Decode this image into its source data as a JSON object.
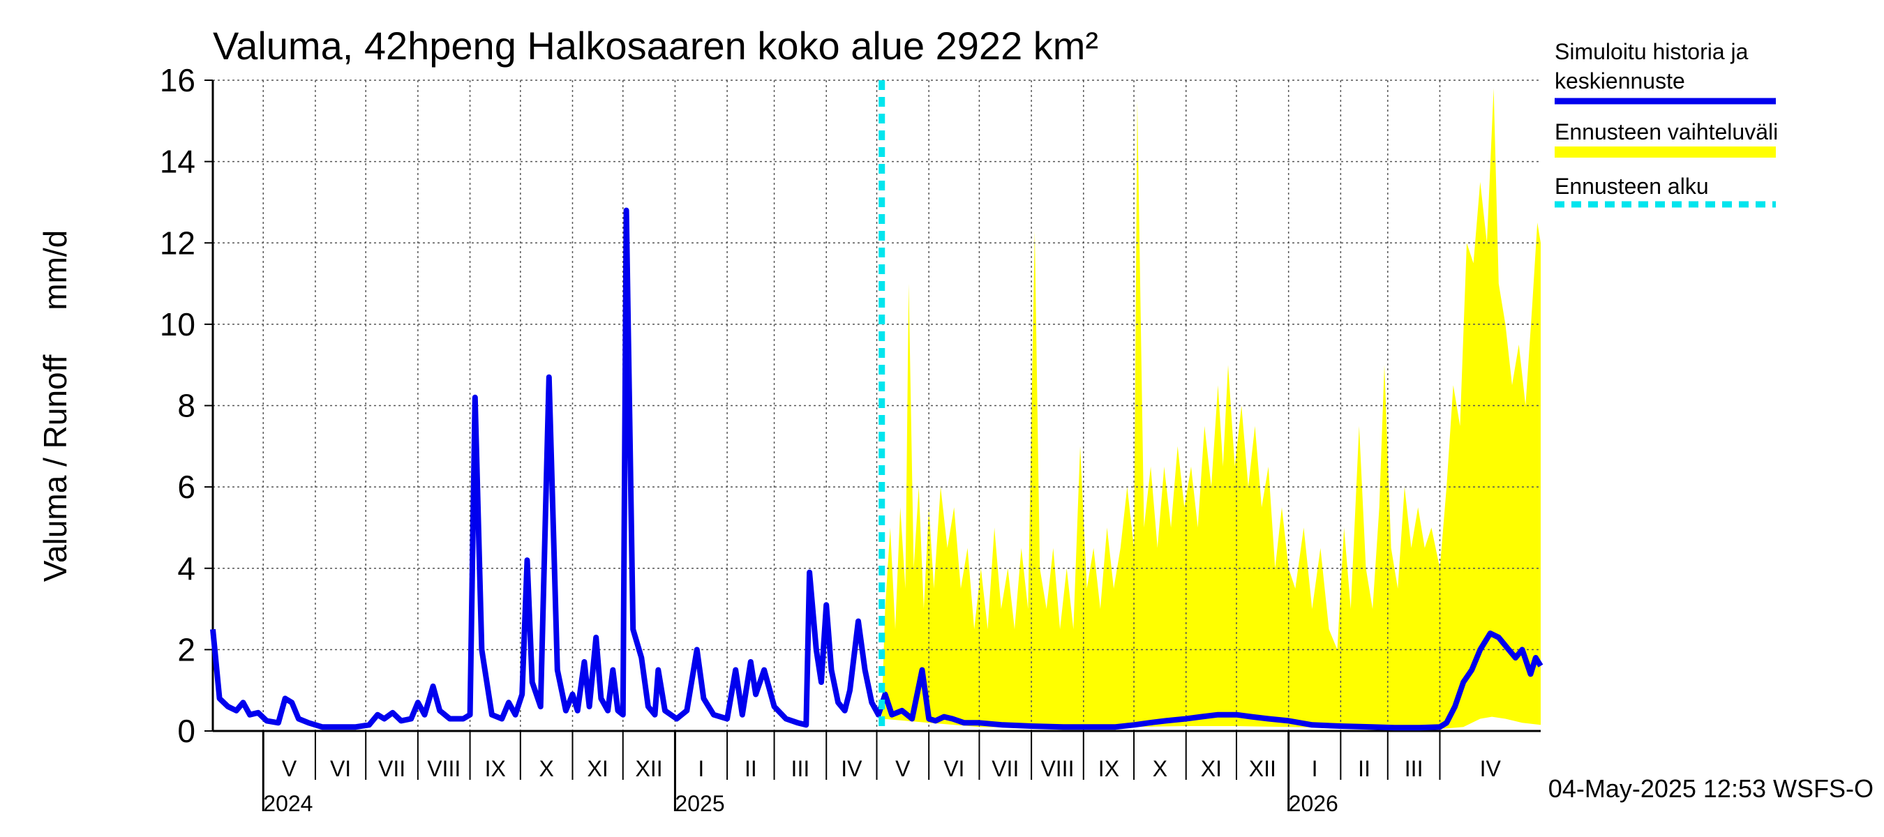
{
  "chart_data": {
    "type": "area",
    "title": "Valuma, 42hpeng Halkosaaren koko alue 2922 km²",
    "ylabel": "Valuma / Runoff     mm/d",
    "ylim": [
      0,
      16
    ],
    "yticks": [
      0,
      2,
      4,
      6,
      8,
      10,
      12,
      14,
      16
    ],
    "grid": true,
    "legend_position": "right",
    "x_start": "2024-04-01",
    "x_end": "2026-05-31",
    "forecast_start": "2025-05-04",
    "months": [
      {
        "label": "V",
        "start": "2024-05-01"
      },
      {
        "label": "VI",
        "start": "2024-06-01"
      },
      {
        "label": "VII",
        "start": "2024-07-01"
      },
      {
        "label": "VIII",
        "start": "2024-08-01"
      },
      {
        "label": "IX",
        "start": "2024-09-01"
      },
      {
        "label": "X",
        "start": "2024-10-01"
      },
      {
        "label": "XI",
        "start": "2024-11-01"
      },
      {
        "label": "XII",
        "start": "2024-12-01"
      },
      {
        "label": "I",
        "start": "2025-01-01"
      },
      {
        "label": "II",
        "start": "2025-02-01"
      },
      {
        "label": "III",
        "start": "2025-03-01"
      },
      {
        "label": "IV",
        "start": "2025-04-01"
      },
      {
        "label": "V",
        "start": "2025-05-01"
      },
      {
        "label": "VI",
        "start": "2025-06-01"
      },
      {
        "label": "VII",
        "start": "2025-07-01"
      },
      {
        "label": "VIII",
        "start": "2025-08-01"
      },
      {
        "label": "IX",
        "start": "2025-09-01"
      },
      {
        "label": "X",
        "start": "2025-10-01"
      },
      {
        "label": "XI",
        "start": "2025-11-01"
      },
      {
        "label": "XII",
        "start": "2025-12-01"
      },
      {
        "label": "I",
        "start": "2026-01-01"
      },
      {
        "label": "II",
        "start": "2026-02-01"
      },
      {
        "label": "III",
        "start": "2026-03-01"
      },
      {
        "label": "IV",
        "start": "2026-04-01"
      }
    ],
    "years": [
      {
        "label": "2024",
        "date": "2024-05-01"
      },
      {
        "label": "2025",
        "date": "2025-01-01"
      },
      {
        "label": "2026",
        "date": "2026-01-01"
      }
    ],
    "legend": [
      {
        "label": "Simuloitu historia ja\nkeskiennuste",
        "color": "#0000ee",
        "style": "solid"
      },
      {
        "label": "Ennusteen vaihteluväli",
        "color": "#ffff00",
        "style": "band"
      },
      {
        "label": "Ennusteen alku",
        "color": "#00e5ee",
        "style": "dashed"
      }
    ],
    "series": [
      {
        "name": "Simuloitu historia ja keskiennuste",
        "color": "#0000ee",
        "points": [
          [
            "2024-04-01",
            2.5
          ],
          [
            "2024-04-05",
            0.8
          ],
          [
            "2024-04-10",
            0.6
          ],
          [
            "2024-04-15",
            0.5
          ],
          [
            "2024-04-19",
            0.7
          ],
          [
            "2024-04-23",
            0.4
          ],
          [
            "2024-04-28",
            0.45
          ],
          [
            "2024-05-03",
            0.25
          ],
          [
            "2024-05-10",
            0.2
          ],
          [
            "2024-05-14",
            0.8
          ],
          [
            "2024-05-18",
            0.7
          ],
          [
            "2024-05-22",
            0.3
          ],
          [
            "2024-05-28",
            0.2
          ],
          [
            "2024-06-05",
            0.1
          ],
          [
            "2024-06-15",
            0.1
          ],
          [
            "2024-06-25",
            0.1
          ],
          [
            "2024-07-03",
            0.15
          ],
          [
            "2024-07-08",
            0.4
          ],
          [
            "2024-07-12",
            0.3
          ],
          [
            "2024-07-17",
            0.45
          ],
          [
            "2024-07-22",
            0.25
          ],
          [
            "2024-07-28",
            0.3
          ],
          [
            "2024-08-01",
            0.7
          ],
          [
            "2024-08-05",
            0.4
          ],
          [
            "2024-08-10",
            1.1
          ],
          [
            "2024-08-14",
            0.5
          ],
          [
            "2024-08-20",
            0.3
          ],
          [
            "2024-08-28",
            0.3
          ],
          [
            "2024-09-01",
            0.4
          ],
          [
            "2024-09-04",
            8.2
          ],
          [
            "2024-09-08",
            2.0
          ],
          [
            "2024-09-14",
            0.4
          ],
          [
            "2024-09-20",
            0.3
          ],
          [
            "2024-09-24",
            0.7
          ],
          [
            "2024-09-28",
            0.4
          ],
          [
            "2024-10-02",
            0.9
          ],
          [
            "2024-10-05",
            4.2
          ],
          [
            "2024-10-08",
            1.2
          ],
          [
            "2024-10-13",
            0.6
          ],
          [
            "2024-10-18",
            8.7
          ],
          [
            "2024-10-23",
            1.5
          ],
          [
            "2024-10-28",
            0.5
          ],
          [
            "2024-11-01",
            0.9
          ],
          [
            "2024-11-04",
            0.5
          ],
          [
            "2024-11-08",
            1.7
          ],
          [
            "2024-11-11",
            0.6
          ],
          [
            "2024-11-15",
            2.3
          ],
          [
            "2024-11-18",
            0.8
          ],
          [
            "2024-11-22",
            0.5
          ],
          [
            "2024-11-25",
            1.5
          ],
          [
            "2024-11-28",
            0.5
          ],
          [
            "2024-12-01",
            0.4
          ],
          [
            "2024-12-03",
            12.8
          ],
          [
            "2024-12-07",
            2.5
          ],
          [
            "2024-12-12",
            1.8
          ],
          [
            "2024-12-16",
            0.6
          ],
          [
            "2024-12-20",
            0.4
          ],
          [
            "2024-12-22",
            1.5
          ],
          [
            "2024-12-26",
            0.5
          ],
          [
            "2025-01-02",
            0.3
          ],
          [
            "2025-01-08",
            0.5
          ],
          [
            "2025-01-14",
            2.0
          ],
          [
            "2025-01-18",
            0.8
          ],
          [
            "2025-01-24",
            0.4
          ],
          [
            "2025-02-01",
            0.3
          ],
          [
            "2025-02-06",
            1.5
          ],
          [
            "2025-02-10",
            0.4
          ],
          [
            "2025-02-15",
            1.7
          ],
          [
            "2025-02-18",
            0.9
          ],
          [
            "2025-02-23",
            1.5
          ],
          [
            "2025-03-01",
            0.6
          ],
          [
            "2025-03-08",
            0.3
          ],
          [
            "2025-03-15",
            0.2
          ],
          [
            "2025-03-20",
            0.15
          ],
          [
            "2025-03-22",
            3.9
          ],
          [
            "2025-03-26",
            2.0
          ],
          [
            "2025-03-29",
            1.2
          ],
          [
            "2025-04-01",
            3.1
          ],
          [
            "2025-04-04",
            1.5
          ],
          [
            "2025-04-08",
            0.7
          ],
          [
            "2025-04-12",
            0.5
          ],
          [
            "2025-04-15",
            1.0
          ],
          [
            "2025-04-20",
            2.7
          ],
          [
            "2025-04-24",
            1.5
          ],
          [
            "2025-04-28",
            0.7
          ],
          [
            "2025-05-02",
            0.4
          ],
          [
            "2025-05-06",
            0.9
          ],
          [
            "2025-05-10",
            0.4
          ],
          [
            "2025-05-16",
            0.5
          ],
          [
            "2025-05-22",
            0.3
          ],
          [
            "2025-05-28",
            1.5
          ],
          [
            "2025-06-01",
            0.3
          ],
          [
            "2025-06-05",
            0.25
          ],
          [
            "2025-06-10",
            0.35
          ],
          [
            "2025-06-15",
            0.3
          ],
          [
            "2025-06-22",
            0.2
          ],
          [
            "2025-07-01",
            0.2
          ],
          [
            "2025-07-15",
            0.15
          ],
          [
            "2025-08-01",
            0.12
          ],
          [
            "2025-08-20",
            0.1
          ],
          [
            "2025-09-05",
            0.1
          ],
          [
            "2025-09-20",
            0.1
          ],
          [
            "2025-10-01",
            0.15
          ],
          [
            "2025-10-10",
            0.2
          ],
          [
            "2025-10-20",
            0.25
          ],
          [
            "2025-11-01",
            0.3
          ],
          [
            "2025-11-10",
            0.35
          ],
          [
            "2025-11-20",
            0.4
          ],
          [
            "2025-12-01",
            0.4
          ],
          [
            "2025-12-10",
            0.35
          ],
          [
            "2025-12-20",
            0.3
          ],
          [
            "2026-01-01",
            0.25
          ],
          [
            "2026-01-15",
            0.15
          ],
          [
            "2026-02-01",
            0.12
          ],
          [
            "2026-02-20",
            0.1
          ],
          [
            "2026-03-05",
            0.08
          ],
          [
            "2026-03-20",
            0.08
          ],
          [
            "2026-04-01",
            0.1
          ],
          [
            "2026-04-05",
            0.2
          ],
          [
            "2026-04-10",
            0.6
          ],
          [
            "2026-04-15",
            1.2
          ],
          [
            "2026-04-20",
            1.5
          ],
          [
            "2026-04-25",
            2.0
          ],
          [
            "2026-05-01",
            2.4
          ],
          [
            "2026-05-06",
            2.3
          ],
          [
            "2026-05-12",
            2.0
          ],
          [
            "2026-05-16",
            1.8
          ],
          [
            "2026-05-20",
            2.0
          ],
          [
            "2026-05-25",
            1.4
          ],
          [
            "2026-05-28",
            1.8
          ],
          [
            "2026-05-31",
            1.6
          ]
        ]
      }
    ],
    "band": {
      "name": "Ennusteen vaihteluväli",
      "color": "#ffff00",
      "upper": [
        [
          "2025-05-04",
          0.5
        ],
        [
          "2025-05-06",
          3.0
        ],
        [
          "2025-05-09",
          5.0
        ],
        [
          "2025-05-12",
          2.5
        ],
        [
          "2025-05-15",
          5.5
        ],
        [
          "2025-05-18",
          3.5
        ],
        [
          "2025-05-20",
          11.0
        ],
        [
          "2025-05-23",
          4.0
        ],
        [
          "2025-05-26",
          6.0
        ],
        [
          "2025-05-29",
          3.0
        ],
        [
          "2025-06-01",
          5.5
        ],
        [
          "2025-06-04",
          3.5
        ],
        [
          "2025-06-08",
          6.0
        ],
        [
          "2025-06-12",
          4.5
        ],
        [
          "2025-06-16",
          5.5
        ],
        [
          "2025-06-20",
          3.5
        ],
        [
          "2025-06-24",
          4.5
        ],
        [
          "2025-06-28",
          2.5
        ],
        [
          "2025-07-02",
          4.0
        ],
        [
          "2025-07-06",
          2.5
        ],
        [
          "2025-07-10",
          5.0
        ],
        [
          "2025-07-14",
          3.0
        ],
        [
          "2025-07-18",
          4.0
        ],
        [
          "2025-07-22",
          2.5
        ],
        [
          "2025-07-26",
          4.5
        ],
        [
          "2025-07-30",
          3.0
        ],
        [
          "2025-08-03",
          12.3
        ],
        [
          "2025-08-06",
          4.0
        ],
        [
          "2025-08-10",
          3.0
        ],
        [
          "2025-08-14",
          4.5
        ],
        [
          "2025-08-18",
          2.5
        ],
        [
          "2025-08-22",
          4.0
        ],
        [
          "2025-08-26",
          2.5
        ],
        [
          "2025-08-30",
          7.0
        ],
        [
          "2025-09-03",
          3.5
        ],
        [
          "2025-09-07",
          4.5
        ],
        [
          "2025-09-11",
          3.0
        ],
        [
          "2025-09-15",
          5.0
        ],
        [
          "2025-09-19",
          3.5
        ],
        [
          "2025-09-23",
          4.5
        ],
        [
          "2025-09-27",
          6.0
        ],
        [
          "2025-10-01",
          4.5
        ],
        [
          "2025-10-03",
          15.5
        ],
        [
          "2025-10-07",
          5.0
        ],
        [
          "2025-10-11",
          6.5
        ],
        [
          "2025-10-15",
          4.5
        ],
        [
          "2025-10-19",
          6.5
        ],
        [
          "2025-10-23",
          5.0
        ],
        [
          "2025-10-27",
          7.0
        ],
        [
          "2025-10-31",
          5.5
        ],
        [
          "2025-11-04",
          6.5
        ],
        [
          "2025-11-08",
          5.0
        ],
        [
          "2025-11-12",
          7.5
        ],
        [
          "2025-11-16",
          6.0
        ],
        [
          "2025-11-20",
          8.5
        ],
        [
          "2025-11-23",
          6.5
        ],
        [
          "2025-11-26",
          9.0
        ],
        [
          "2025-11-30",
          6.5
        ],
        [
          "2025-12-04",
          8.0
        ],
        [
          "2025-12-08",
          6.0
        ],
        [
          "2025-12-12",
          7.5
        ],
        [
          "2025-12-16",
          5.5
        ],
        [
          "2025-12-20",
          6.5
        ],
        [
          "2025-12-24",
          4.0
        ],
        [
          "2025-12-28",
          5.5
        ],
        [
          "2026-01-01",
          4.0
        ],
        [
          "2026-01-05",
          3.5
        ],
        [
          "2026-01-10",
          5.0
        ],
        [
          "2026-01-15",
          3.0
        ],
        [
          "2026-01-20",
          4.5
        ],
        [
          "2026-01-25",
          2.5
        ],
        [
          "2026-01-30",
          2.0
        ],
        [
          "2026-02-03",
          5.0
        ],
        [
          "2026-02-07",
          3.0
        ],
        [
          "2026-02-12",
          7.5
        ],
        [
          "2026-02-16",
          4.0
        ],
        [
          "2026-02-20",
          3.0
        ],
        [
          "2026-02-24",
          5.5
        ],
        [
          "2026-02-27",
          9.0
        ],
        [
          "2026-03-03",
          4.5
        ],
        [
          "2026-03-07",
          3.5
        ],
        [
          "2026-03-11",
          6.0
        ],
        [
          "2026-03-15",
          4.5
        ],
        [
          "2026-03-19",
          5.5
        ],
        [
          "2026-03-23",
          4.5
        ],
        [
          "2026-03-27",
          5.0
        ],
        [
          "2026-04-01",
          4.0
        ],
        [
          "2026-04-05",
          6.0
        ],
        [
          "2026-04-09",
          8.5
        ],
        [
          "2026-04-13",
          7.5
        ],
        [
          "2026-04-17",
          12.0
        ],
        [
          "2026-04-21",
          11.5
        ],
        [
          "2026-04-25",
          13.5
        ],
        [
          "2026-04-29",
          12.0
        ],
        [
          "2026-05-03",
          15.8
        ],
        [
          "2026-05-06",
          11.0
        ],
        [
          "2026-05-10",
          10.0
        ],
        [
          "2026-05-14",
          8.5
        ],
        [
          "2026-05-18",
          9.5
        ],
        [
          "2026-05-22",
          8.0
        ],
        [
          "2026-05-26",
          10.5
        ],
        [
          "2026-05-29",
          12.5
        ],
        [
          "2026-05-31",
          12.0
        ]
      ],
      "lower": [
        [
          "2025-05-04",
          0.3
        ],
        [
          "2025-06-01",
          0.2
        ],
        [
          "2025-07-01",
          0.1
        ],
        [
          "2025-08-01",
          0.08
        ],
        [
          "2025-09-01",
          0.08
        ],
        [
          "2025-10-01",
          0.1
        ],
        [
          "2025-11-01",
          0.12
        ],
        [
          "2025-12-01",
          0.12
        ],
        [
          "2026-01-01",
          0.1
        ],
        [
          "2026-02-01",
          0.08
        ],
        [
          "2026-03-01",
          0.06
        ],
        [
          "2026-04-01",
          0.05
        ],
        [
          "2026-04-15",
          0.1
        ],
        [
          "2026-04-25",
          0.3
        ],
        [
          "2026-05-02",
          0.35
        ],
        [
          "2026-05-10",
          0.3
        ],
        [
          "2026-05-20",
          0.2
        ],
        [
          "2026-05-31",
          0.15
        ]
      ]
    }
  },
  "footer": {
    "timestamp": "04-May-2025 12:53 WSFS-O"
  }
}
